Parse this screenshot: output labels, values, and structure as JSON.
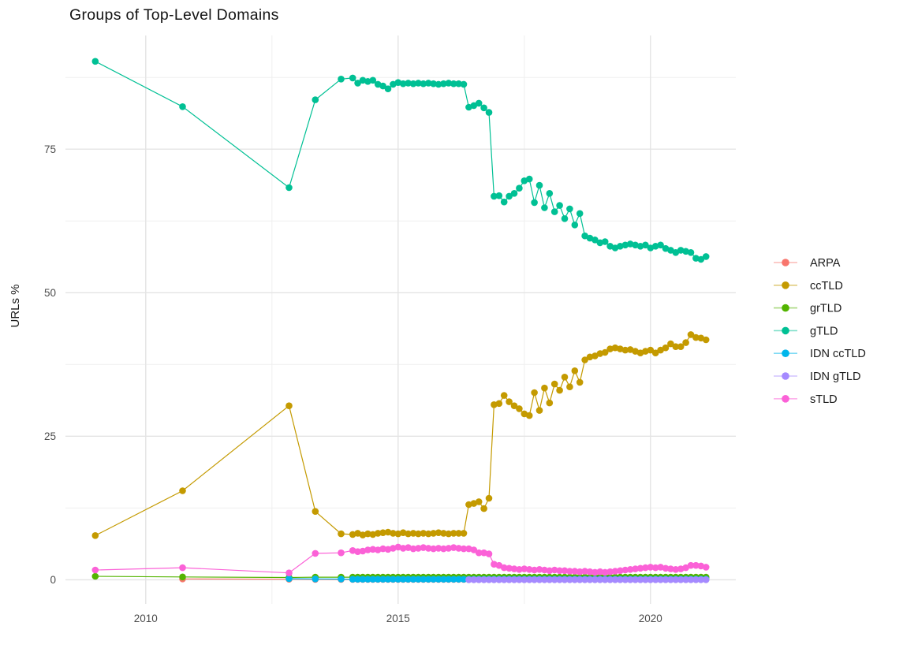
{
  "title": "Groups of Top-Level Domains",
  "axes": {
    "y_title": "URLs %",
    "y_tick_labels": [
      "0",
      "25",
      "50",
      "75"
    ],
    "x_tick_labels": [
      "2010",
      "2015",
      "2020"
    ]
  },
  "legend": {
    "items": [
      {
        "label": "ARPA",
        "color": "#F8766D"
      },
      {
        "label": "ccTLD",
        "color": "#C49A00"
      },
      {
        "label": "grTLD",
        "color": "#53B400"
      },
      {
        "label": "gTLD",
        "color": "#00C094"
      },
      {
        "label": "IDN ccTLD",
        "color": "#00B6EB"
      },
      {
        "label": "IDN gTLD",
        "color": "#A58AFF"
      },
      {
        "label": "sTLD",
        "color": "#FB61D7"
      }
    ]
  },
  "colors": {
    "grid_major": "#e4e4e4",
    "grid_minor": "#efefef",
    "background": "#ffffff"
  },
  "chart_data": {
    "type": "line",
    "title": "Groups of Top-Level Domains",
    "xlabel": "",
    "ylabel": "URLs %",
    "xlim": [
      2008.41,
      2021.69
    ],
    "ylim": [
      -4.2,
      94.8
    ],
    "x_major": [
      2010,
      2015,
      2020
    ],
    "x_minor": [
      2012.5,
      2017.5
    ],
    "y_major": [
      0,
      25,
      50,
      75
    ],
    "y_minor": [
      12.5,
      37.5,
      62.5,
      87.5
    ],
    "grid": true,
    "legend_position": "right",
    "series": [
      {
        "name": "ARPA",
        "color": "#F8766D",
        "pre": [
          [
            2010.73,
            0.15
          ],
          [
            2012.84,
            0.1
          ],
          [
            2013.36,
            0.07
          ],
          [
            2013.87,
            0.06
          ]
        ],
        "dense": {
          "x0": 2014.1,
          "dx": 0.1,
          "count": 71,
          "value": 0.05
        }
      },
      {
        "name": "ccTLD",
        "color": "#C49A00",
        "pre": [
          [
            2009.0,
            7.7
          ],
          [
            2010.73,
            15.5
          ],
          [
            2012.84,
            30.3
          ],
          [
            2013.36,
            11.9
          ],
          [
            2013.87,
            8.0
          ]
        ],
        "dense": {
          "x0": 2014.1,
          "dx": 0.1,
          "values": [
            7.9,
            8.1,
            7.8,
            8.0,
            7.9,
            8.1,
            8.2,
            8.3,
            8.1,
            8.0,
            8.2,
            8.0,
            8.1,
            8.0,
            8.1,
            8.0,
            8.1,
            8.2,
            8.1,
            8.0,
            8.1,
            8.1,
            8.1,
            13.1,
            13.3,
            13.6,
            12.4,
            14.2,
            30.5,
            30.7,
            32.1,
            31.0,
            30.3,
            29.8,
            28.9,
            28.6,
            32.6,
            29.5,
            33.4,
            30.8,
            34.1,
            33.0,
            35.3,
            33.6,
            36.4,
            34.4,
            38.3,
            38.8,
            39.0,
            39.4,
            39.6,
            40.2,
            40.4,
            40.2,
            40.0,
            40.1,
            39.8,
            39.5,
            39.8,
            40.0,
            39.5,
            40.0,
            40.4,
            41.1,
            40.6,
            40.6,
            41.3,
            42.7,
            42.2,
            42.1,
            41.8
          ]
        }
      },
      {
        "name": "grTLD",
        "color": "#53B400",
        "pre": [
          [
            2009.0,
            0.6
          ],
          [
            2010.73,
            0.5
          ],
          [
            2012.84,
            0.4
          ],
          [
            2013.36,
            0.45
          ],
          [
            2013.87,
            0.45
          ]
        ],
        "dense": {
          "x0": 2014.1,
          "dx": 0.1,
          "count": 71,
          "value": 0.45
        }
      },
      {
        "name": "gTLD",
        "color": "#00C094",
        "pre": [
          [
            2009.0,
            90.3
          ],
          [
            2010.73,
            82.4
          ],
          [
            2012.84,
            68.3
          ],
          [
            2013.36,
            83.6
          ],
          [
            2013.87,
            87.2
          ]
        ],
        "dense": {
          "x0": 2014.1,
          "dx": 0.1,
          "values": [
            87.4,
            86.5,
            87.0,
            86.8,
            87.0,
            86.3,
            86.0,
            85.5,
            86.3,
            86.6,
            86.4,
            86.5,
            86.4,
            86.5,
            86.4,
            86.5,
            86.4,
            86.3,
            86.4,
            86.5,
            86.4,
            86.4,
            86.3,
            82.3,
            82.6,
            83.0,
            82.2,
            81.4,
            66.8,
            66.9,
            65.8,
            66.8,
            67.3,
            68.2,
            69.5,
            69.8,
            65.7,
            68.7,
            64.8,
            67.3,
            64.1,
            65.2,
            62.9,
            64.6,
            61.8,
            63.8,
            59.9,
            59.5,
            59.2,
            58.7,
            58.9,
            58.1,
            57.8,
            58.1,
            58.3,
            58.5,
            58.3,
            58.1,
            58.3,
            57.8,
            58.1,
            58.3,
            57.7,
            57.4,
            57.0,
            57.4,
            57.2,
            57.0,
            56.0,
            55.8,
            56.3
          ]
        }
      },
      {
        "name": "IDN ccTLD",
        "color": "#00B6EB",
        "pre": [
          [
            2012.84,
            0.2
          ],
          [
            2013.36,
            0.15
          ],
          [
            2013.87,
            0.12
          ]
        ],
        "dense": {
          "x0": 2014.1,
          "dx": 0.1,
          "count": 71,
          "value": 0.1
        }
      },
      {
        "name": "IDN gTLD",
        "color": "#A58AFF",
        "pre": [],
        "dense": {
          "x0": 2016.4,
          "dx": 0.1,
          "count": 48,
          "value": 0.02
        }
      },
      {
        "name": "sTLD",
        "color": "#FB61D7",
        "pre": [
          [
            2009.0,
            1.7
          ],
          [
            2010.73,
            2.1
          ],
          [
            2012.84,
            1.2
          ],
          [
            2013.36,
            4.6
          ],
          [
            2013.87,
            4.7
          ]
        ],
        "dense": {
          "x0": 2014.1,
          "dx": 0.1,
          "values": [
            5.1,
            4.9,
            5.0,
            5.2,
            5.3,
            5.2,
            5.4,
            5.3,
            5.5,
            5.7,
            5.5,
            5.6,
            5.4,
            5.5,
            5.6,
            5.5,
            5.4,
            5.5,
            5.4,
            5.5,
            5.6,
            5.5,
            5.4,
            5.4,
            5.2,
            4.7,
            4.7,
            4.5,
            2.7,
            2.5,
            2.1,
            2.0,
            1.9,
            1.8,
            1.9,
            1.8,
            1.7,
            1.8,
            1.7,
            1.6,
            1.7,
            1.6,
            1.6,
            1.5,
            1.5,
            1.4,
            1.5,
            1.4,
            1.3,
            1.4,
            1.3,
            1.4,
            1.5,
            1.6,
            1.7,
            1.8,
            1.9,
            2.0,
            2.1,
            2.2,
            2.1,
            2.2,
            2.0,
            1.9,
            1.8,
            1.9,
            2.1,
            2.5,
            2.5,
            2.4,
            2.2
          ]
        }
      }
    ]
  }
}
